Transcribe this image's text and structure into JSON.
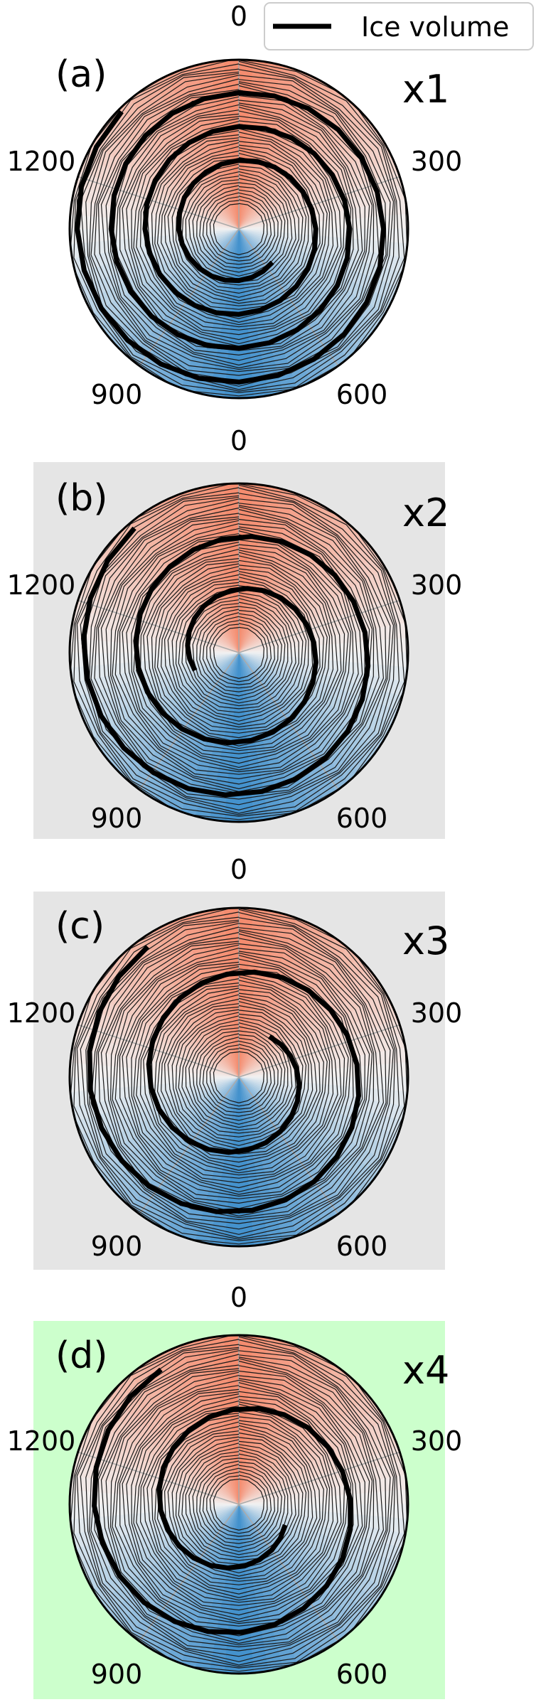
{
  "legend": {
    "label": "Ice volume",
    "color": "#000000"
  },
  "colors": {
    "warm": "#f4896b",
    "cool": "#3f8fcc",
    "mid": "#f2f2f2"
  },
  "chart_data": [
    {
      "type": "polar-line",
      "panel_label": "(a)",
      "multiplier_label": "x1",
      "background": "#ffffff",
      "angular_ticks": [
        "0",
        "300",
        "600",
        "900",
        "1200"
      ],
      "angular_range": [
        0,
        1500
      ],
      "series": [
        {
          "name": "Ice volume",
          "turns": 3.5,
          "r_start": 0.28,
          "r_end": 0.98,
          "spiral_start_angle": 315
        }
      ]
    },
    {
      "type": "polar-line",
      "panel_label": "(b)",
      "multiplier_label": "x2",
      "background": "#e5e5e5",
      "angular_ticks": [
        "0",
        "300",
        "600",
        "900",
        "1200"
      ],
      "angular_range": [
        0,
        1500
      ],
      "series": [
        {
          "name": "Ice volume",
          "turns": 2.2,
          "r_start": 0.28,
          "r_end": 0.96,
          "spiral_start_angle": 320
        }
      ]
    },
    {
      "type": "polar-line",
      "panel_label": "(c)",
      "multiplier_label": "x3",
      "background": "#e5e5e5",
      "angular_ticks": [
        "0",
        "300",
        "600",
        "900",
        "1200"
      ],
      "angular_range": [
        0,
        1500
      ],
      "series": [
        {
          "name": "Ice volume",
          "turns": 1.8,
          "r_start": 0.3,
          "r_end": 0.94,
          "spiral_start_angle": 325
        }
      ]
    },
    {
      "type": "polar-line",
      "panel_label": "(d)",
      "multiplier_label": "x4",
      "background": "#ccffcc",
      "angular_ticks": [
        "0",
        "300",
        "600",
        "900",
        "1200"
      ],
      "angular_range": [
        0,
        1500
      ],
      "series": [
        {
          "name": "Ice volume",
          "turns": 1.6,
          "r_start": 0.3,
          "r_end": 0.92,
          "spiral_start_angle": 330
        }
      ]
    }
  ]
}
